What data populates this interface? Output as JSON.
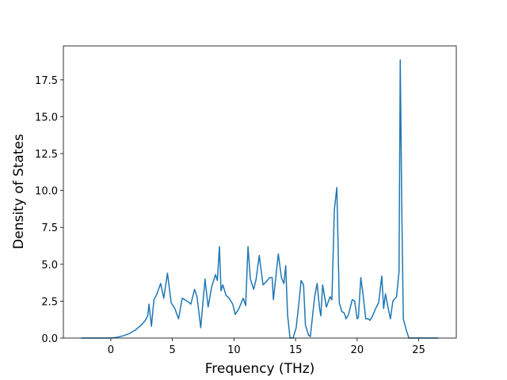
{
  "chart_data": {
    "type": "line",
    "x_label": "Frequency (THz)",
    "y_label": "Density of States",
    "xlim": [
      -3.85,
      28.05
    ],
    "ylim": [
      0,
      19.8
    ],
    "xticks": [
      0,
      5,
      10,
      15,
      20,
      25
    ],
    "yticks": [
      {
        "value": 0,
        "label": "0.0"
      },
      {
        "value": 2.5,
        "label": "2.5"
      },
      {
        "value": 5,
        "label": "5.0"
      },
      {
        "value": 7.5,
        "label": "7.5"
      },
      {
        "value": 10,
        "label": "10.0"
      },
      {
        "value": 12.5,
        "label": "12.5"
      },
      {
        "value": 15,
        "label": "15.0"
      },
      {
        "value": 17.5,
        "label": "17.5"
      }
    ],
    "grid": false,
    "x": [
      -2.4,
      -1,
      0,
      0.5,
      1,
      1.5,
      2,
      2.5,
      2.8,
      3.0,
      3.1,
      3.3,
      3.5,
      3.7,
      4.05,
      4.3,
      4.6,
      4.9,
      5.2,
      5.5,
      5.8,
      6.2,
      6.5,
      6.8,
      7.0,
      7.3,
      7.65,
      7.9,
      8.2,
      8.5,
      8.65,
      8.82,
      8.95,
      9.1,
      9.35,
      9.6,
      9.9,
      10.1,
      10.4,
      10.75,
      10.95,
      11.14,
      11.33,
      11.6,
      11.8,
      12.05,
      12.36,
      12.6,
      12.9,
      13.1,
      13.2,
      13.6,
      13.85,
      14.05,
      14.2,
      14.35,
      14.55,
      14.8,
      15.05,
      15.25,
      15.45,
      15.65,
      15.8,
      16.05,
      16.2,
      16.55,
      16.75,
      16.95,
      17.05,
      17.2,
      17.5,
      17.8,
      17.95,
      18.15,
      18.35,
      18.55,
      18.75,
      18.95,
      19.1,
      19.3,
      19.6,
      19.8,
      20.0,
      20.1,
      20.3,
      20.5,
      20.7,
      20.9,
      21.05,
      21.25,
      21.5,
      21.75,
      22.0,
      22.15,
      22.3,
      22.5,
      22.7,
      22.9,
      23.2,
      23.4,
      23.5,
      23.62,
      23.75,
      24.0,
      24.2,
      26.6
    ],
    "series": [
      {
        "name": "DOS",
        "color": "#1f77b4",
        "values": [
          0,
          0,
          0,
          0.05,
          0.15,
          0.3,
          0.55,
          0.9,
          1.2,
          1.5,
          2.3,
          0.8,
          2.6,
          2.9,
          3.7,
          2.7,
          4.4,
          2.4,
          2.0,
          1.3,
          2.7,
          2.5,
          2.3,
          3.3,
          2.8,
          0.7,
          4.0,
          2.1,
          3.5,
          4.3,
          3.9,
          6.2,
          3.2,
          3.6,
          2.9,
          2.7,
          2.3,
          1.6,
          2.0,
          2.7,
          2.2,
          6.2,
          4.0,
          3.3,
          4.0,
          5.6,
          3.6,
          3.8,
          4.1,
          4.1,
          2.6,
          5.7,
          4.1,
          3.7,
          4.9,
          1.6,
          0,
          0,
          0.7,
          2.2,
          3.9,
          3.6,
          0.9,
          0.2,
          0.1,
          2.8,
          3.7,
          2.0,
          1.5,
          3.6,
          2.1,
          2.8,
          2.6,
          8.7,
          10.2,
          2.4,
          1.8,
          1.7,
          1.3,
          1.6,
          2.6,
          2.5,
          1.3,
          1.4,
          4.1,
          2.8,
          1.3,
          1.3,
          1.2,
          1.5,
          2.0,
          2.4,
          4.2,
          2.0,
          3.0,
          2.1,
          1.3,
          2.5,
          2.8,
          4.5,
          18.85,
          9.0,
          1.3,
          0.5,
          0,
          0
        ]
      }
    ]
  }
}
